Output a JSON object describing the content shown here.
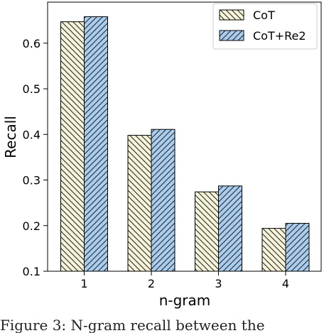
{
  "chart_data": {
    "type": "bar",
    "categories": [
      "1",
      "2",
      "3",
      "4"
    ],
    "series": [
      {
        "name": "CoT",
        "values": [
          0.647,
          0.398,
          0.274,
          0.194
        ],
        "color": "#f5f3d8",
        "hatch": "back-slash"
      },
      {
        "name": "CoT+Re2",
        "values": [
          0.658,
          0.411,
          0.287,
          0.205
        ],
        "color": "#a8cdef",
        "hatch": "forward-slash"
      }
    ],
    "xlabel": "n-gram",
    "ylabel": "Recall",
    "ylim": [
      0.1,
      0.69
    ],
    "yticks": [
      "0.1",
      "0.2",
      "0.3",
      "0.4",
      "0.5",
      "0.6"
    ],
    "legend_position": "top-right",
    "grid": false
  },
  "caption": {
    "text": "Figure 3: N-gram recall between the"
  }
}
